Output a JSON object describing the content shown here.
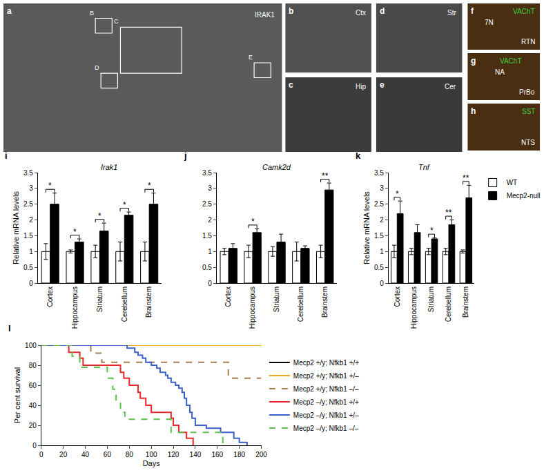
{
  "images": [
    {
      "letter": "a",
      "labels": [
        {
          "text": "IRAK1"
        }
      ],
      "boxes": [
        "B",
        "C",
        "D",
        "E"
      ]
    },
    {
      "letter": "b",
      "labels": [
        {
          "text": "Ctx"
        }
      ]
    },
    {
      "letter": "c",
      "labels": [
        {
          "text": "Hip"
        }
      ]
    },
    {
      "letter": "d",
      "labels": [
        {
          "text": "Str"
        }
      ]
    },
    {
      "letter": "e",
      "labels": [
        {
          "text": "Cer"
        }
      ]
    },
    {
      "letter": "f",
      "labels": [
        {
          "text": "VAChT",
          "color": "#3fd13f"
        },
        {
          "text": "7N"
        },
        {
          "text": "RTN"
        }
      ]
    },
    {
      "letter": "g",
      "labels": [
        {
          "text": "VAChT",
          "color": "#3fd13f"
        },
        {
          "text": "NA"
        },
        {
          "text": "PrBo"
        }
      ]
    },
    {
      "letter": "h",
      "labels": [
        {
          "text": "SST",
          "color": "#3fd13f"
        },
        {
          "text": "NTS"
        }
      ]
    }
  ],
  "chart_data": [
    {
      "type": "bar",
      "panel": "i",
      "title": "Irak1",
      "y_label": "Relative mRNA levels",
      "categories": [
        "Cortex",
        "Hippocampus",
        "Striatum",
        "Cerebellum",
        "Brainstem"
      ],
      "series": [
        {
          "name": "WT",
          "color": "#ffffff",
          "values": [
            1,
            1,
            1,
            1,
            1
          ],
          "errors": [
            0.25,
            0.05,
            0.2,
            0.3,
            0.3
          ]
        },
        {
          "name": "Mecp2-null",
          "color": "#000000",
          "values": [
            2.5,
            1.3,
            1.65,
            2.15,
            2.5
          ],
          "errors": [
            0.35,
            0.1,
            0.25,
            0.1,
            0.35
          ]
        }
      ],
      "significance": [
        {
          "category": "Cortex",
          "label": "*"
        },
        {
          "category": "Hippocampus",
          "label": "*"
        },
        {
          "category": "Striatum",
          "label": "*"
        },
        {
          "category": "Cerebellum",
          "label": "*"
        },
        {
          "category": "Brainstem",
          "label": "*"
        }
      ],
      "ylim": [
        0,
        3.5
      ],
      "yticks": [
        0,
        0.5,
        1,
        1.5,
        2,
        2.5,
        3,
        3.5
      ],
      "grid": false
    },
    {
      "type": "bar",
      "panel": "j",
      "title": "Camk2d",
      "categories": [
        "Cortex",
        "Hippocampus",
        "Striatum",
        "Cerebellum",
        "Brainstem"
      ],
      "series": [
        {
          "name": "WT",
          "color": "#ffffff",
          "values": [
            1,
            1,
            1,
            1,
            1
          ],
          "errors": [
            0.1,
            0.2,
            0.15,
            0.3,
            0.2
          ]
        },
        {
          "name": "Mecp2-null",
          "color": "#000000",
          "values": [
            1.1,
            1.6,
            1.3,
            1.1,
            2.95
          ],
          "errors": [
            0.15,
            0.12,
            0.25,
            0.08,
            0.22
          ]
        }
      ],
      "significance": [
        {
          "category": "Hippocampus",
          "label": "*"
        },
        {
          "category": "Brainstem",
          "label": "**"
        }
      ],
      "ylim": [
        0,
        3.5
      ],
      "yticks": [
        0,
        0.5,
        1,
        1.5,
        2,
        2.5,
        3,
        3.5
      ],
      "grid": false
    },
    {
      "type": "bar",
      "panel": "k",
      "title": "Tnf",
      "y_label": "Relative mRNA levels",
      "categories": [
        "Cortex",
        "Hippocampus",
        "Striatum",
        "Cerebellum",
        "Brainstem"
      ],
      "series": [
        {
          "name": "WT",
          "color": "#ffffff",
          "values": [
            1,
            1,
            1,
            1,
            1
          ],
          "errors": [
            0.2,
            0.1,
            0.1,
            0.1,
            0.05
          ]
        },
        {
          "name": "Mecp2-null",
          "color": "#000000",
          "values": [
            2.2,
            1.6,
            1.4,
            1.85,
            2.7
          ],
          "errors": [
            0.4,
            0.25,
            0.03,
            0.15,
            0.4
          ]
        }
      ],
      "significance": [
        {
          "category": "Cortex",
          "label": "*"
        },
        {
          "category": "Striatum",
          "label": "*"
        },
        {
          "category": "Cerebellum",
          "label": "**"
        },
        {
          "category": "Brainstem",
          "label": "**"
        }
      ],
      "ylim": [
        0,
        3.5
      ],
      "yticks": [
        0,
        0.5,
        1,
        1.5,
        2,
        2.5,
        3,
        3.5
      ],
      "grid": false,
      "legend": "right"
    },
    {
      "type": "line",
      "panel": "l",
      "x_label": "Days",
      "y_label": "Per cent survival",
      "xlim": [
        0,
        200
      ],
      "xticks": [
        0,
        20,
        40,
        60,
        80,
        100,
        120,
        140,
        160,
        180,
        200
      ],
      "ylim": [
        0,
        100
      ],
      "yticks": [
        0,
        20,
        40,
        60,
        80,
        100
      ],
      "grid": false,
      "legend": "right",
      "series": [
        {
          "name": "Mecp2 +/y; Nfkb1 +/+",
          "color": "#000000",
          "line_style": "solid",
          "x": [
            0,
            200
          ],
          "values": [
            100,
            100
          ]
        },
        {
          "name": "Mecp2 +/y; Nfkb1 +/–",
          "color": "#f5a623",
          "line_style": "solid",
          "x": [
            0,
            200
          ],
          "values": [
            100,
            100
          ]
        },
        {
          "name": "Mecp2 +/y; Nfkb1 –/–",
          "color": "#a67c52",
          "line_style": "dash",
          "x": [
            0,
            45,
            55,
            170,
            200
          ],
          "values": [
            100,
            92,
            83,
            67,
            67
          ]
        },
        {
          "name": "Mecp2 –/y; Nfkb1 +/+",
          "color": "#e8262b",
          "line_style": "solid",
          "x": [
            0,
            25,
            35,
            38,
            72,
            75,
            80,
            88,
            90,
            95,
            100,
            118,
            120,
            125,
            132,
            138
          ],
          "values": [
            100,
            93,
            87,
            80,
            73,
            67,
            60,
            53,
            47,
            40,
            33,
            27,
            20,
            13,
            7,
            0
          ]
        },
        {
          "name": "Mecp2 –/y; Nfkb1 +/–",
          "color": "#3a5fc8",
          "line_style": "solid",
          "x": [
            0,
            78,
            85,
            88,
            92,
            95,
            100,
            105,
            108,
            113,
            115,
            118,
            122,
            125,
            128,
            130,
            132,
            135,
            137,
            140,
            150,
            163,
            175,
            180,
            187
          ],
          "values": [
            100,
            97,
            93,
            90,
            87,
            83,
            80,
            77,
            73,
            70,
            67,
            63,
            60,
            57,
            53,
            47,
            40,
            33,
            27,
            20,
            17,
            13,
            7,
            3,
            0
          ]
        },
        {
          "name": "Mecp2 –/y; Nfkb1 –/–",
          "color": "#5cc24a",
          "line_style": "dash",
          "x": [
            0,
            28,
            35,
            60,
            65,
            68,
            72,
            76,
            118,
            165
          ],
          "values": [
            100,
            89,
            78,
            67,
            56,
            44,
            33,
            26,
            13,
            0
          ]
        }
      ]
    }
  ]
}
